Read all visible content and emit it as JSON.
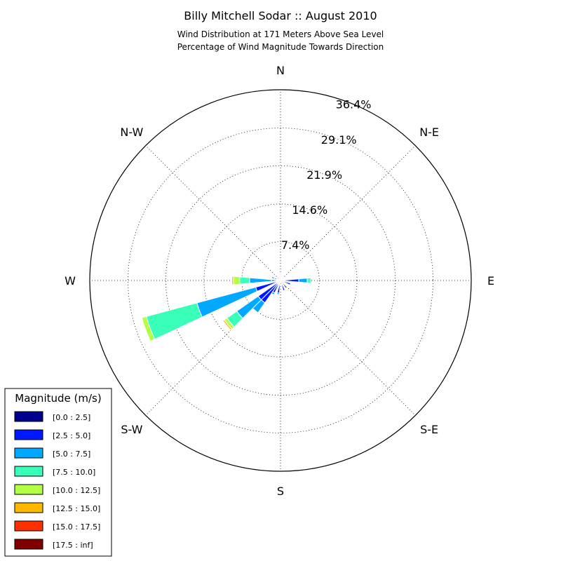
{
  "chart_data": {
    "type": "windrose",
    "title": "Billy Mitchell Sodar :: August 2010",
    "subtitle_lines": [
      "Wind Distribution at 171 Meters Above Sea Level",
      "Percentage of Wind Magnitude Towards Direction"
    ],
    "directions": [
      "N",
      "N-E",
      "E",
      "S-E",
      "S",
      "S-W",
      "W",
      "N-W"
    ],
    "radial_ticks": [
      "7.4%",
      "14.6%",
      "21.9%",
      "29.1%",
      "36.4%"
    ],
    "radial_tick_values": [
      7.4,
      14.6,
      21.9,
      29.1,
      36.4
    ],
    "r_max": 36.4,
    "grid": true,
    "legend": {
      "title": "Magnitude (m/s)",
      "placement": "bottom-left",
      "items": [
        {
          "label": "[0.0 : 2.5]",
          "color": "#00008f"
        },
        {
          "label": "[2.5 : 5.0]",
          "color": "#0018ff"
        },
        {
          "label": "[5.0 : 7.5]",
          "color": "#00a8ff"
        },
        {
          "label": "[7.5 : 10.0]",
          "color": "#3affb8"
        },
        {
          "label": "[10.0 : 12.5]",
          "color": "#b2ff46"
        },
        {
          "label": "[12.5 : 15.0]",
          "color": "#ffb800"
        },
        {
          "label": "[15.0 : 17.5]",
          "color": "#ff3000"
        },
        {
          "label": "[17.5 : inf]",
          "color": "#800000"
        }
      ]
    },
    "sector_width_deg": 10,
    "sectors": [
      {
        "direction_deg": 0,
        "cumulative": [
          0.1,
          1.0,
          1.2
        ]
      },
      {
        "direction_deg": 20,
        "cumulative": [
          0.1,
          0.8
        ]
      },
      {
        "direction_deg": 40,
        "cumulative": [
          0.1,
          0.7
        ]
      },
      {
        "direction_deg": 60,
        "cumulative": [
          0.1,
          0.9
        ]
      },
      {
        "direction_deg": 90,
        "cumulative": [
          0.2,
          3.5,
          5.1,
          5.8
        ]
      },
      {
        "direction_deg": 110,
        "cumulative": [
          0.1,
          2.0
        ]
      },
      {
        "direction_deg": 140,
        "cumulative": [
          0.2,
          1.8
        ]
      },
      {
        "direction_deg": 160,
        "cumulative": [
          0.1,
          2.0
        ]
      },
      {
        "direction_deg": 190,
        "cumulative": [
          0.2,
          2.4,
          2.7
        ]
      },
      {
        "direction_deg": 210,
        "cumulative": [
          0.2,
          2.6,
          3.0
        ]
      },
      {
        "direction_deg": 220,
        "cumulative": [
          0.2,
          5.2,
          7.5
        ]
      },
      {
        "direction_deg": 230,
        "cumulative": [
          0.2,
          5.2,
          10.2,
          12.5,
          13.1,
          13.4
        ]
      },
      {
        "direction_deg": 250,
        "cumulative": [
          0.2,
          4.9,
          16.5,
          26.5,
          27.4
        ]
      },
      {
        "direction_deg": 270,
        "cumulative": [
          0.2,
          1.7,
          5.9,
          7.8,
          9.0,
          9.3
        ]
      },
      {
        "direction_deg": 290,
        "cumulative": [
          0.1,
          1.2,
          1.8
        ]
      },
      {
        "direction_deg": 310,
        "cumulative": [
          0.1,
          0.6
        ]
      },
      {
        "direction_deg": 340,
        "cumulative": [
          0.1,
          0.5
        ]
      }
    ]
  }
}
